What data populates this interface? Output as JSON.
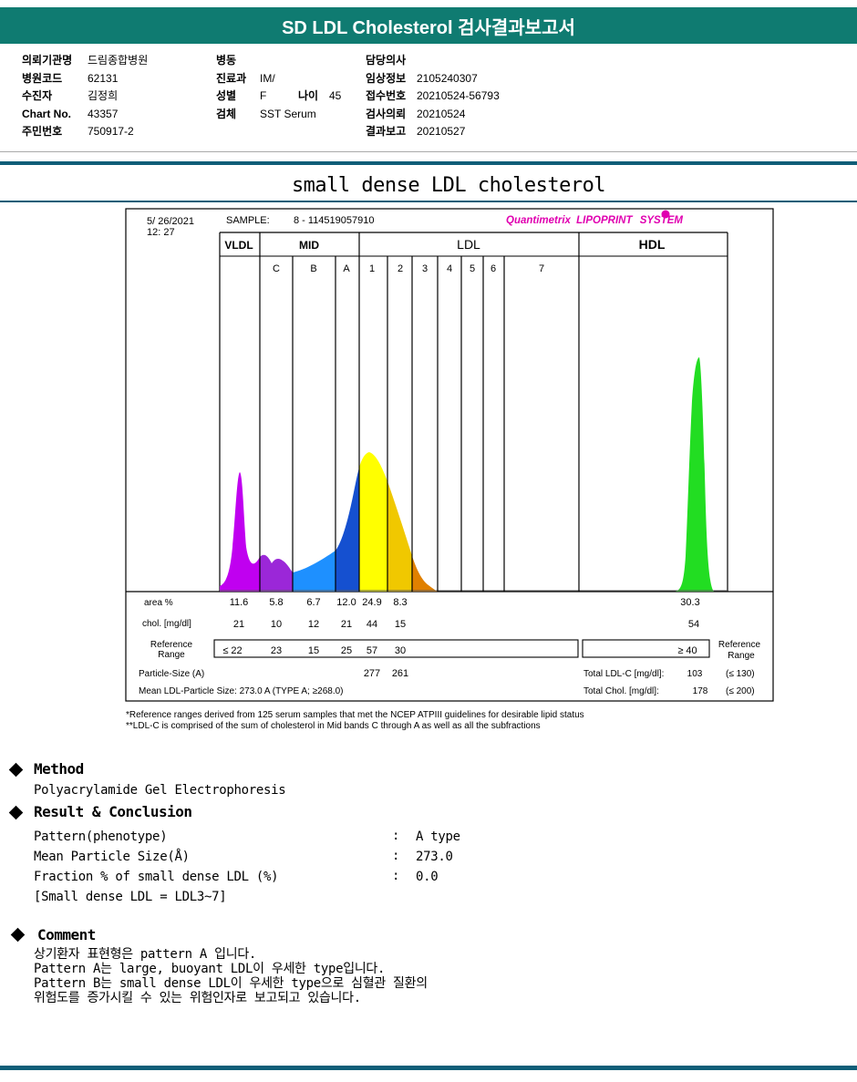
{
  "report_title": "SD LDL Cholesterol 검사결과보고서",
  "patient_info": {
    "col1": [
      {
        "label": "의뢰기관명",
        "value": "드림종합병원"
      },
      {
        "label": "병원코드",
        "value": "62131"
      },
      {
        "label": "수진자",
        "value": "김정희"
      },
      {
        "label": "Chart No.",
        "value": "43357"
      },
      {
        "label": "주민번호",
        "value": "750917-2"
      }
    ],
    "col2": [
      {
        "label": "병동",
        "value": ""
      },
      {
        "label": "진료과",
        "value": "IM/"
      },
      {
        "label": "성별",
        "value": "F"
      },
      {
        "label": "검체",
        "value": "SST Serum"
      }
    ],
    "age_label": "나이",
    "age_value": "45",
    "col3": [
      {
        "label": "담당의사",
        "value": ""
      },
      {
        "label": "임상정보",
        "value": "2105240307"
      },
      {
        "label": "접수번호",
        "value": "20210524-56793"
      },
      {
        "label": "검사의뢰",
        "value": "20210524"
      },
      {
        "label": "결과보고",
        "value": "20210527"
      }
    ]
  },
  "chart_heading": "small dense LDL cholesterol",
  "lipoprint": {
    "date": "5/ 26/2021",
    "time": "12: 27",
    "sample_label": "SAMPLE:",
    "sample_id": "8 - 114519057910",
    "brand_a": "Quantimetrix",
    "brand_b": "LIPOPRINT",
    "brand_c": "SYSTEM",
    "groups": {
      "vldl": "VLDL",
      "mid": "MID",
      "ldl": "LDL",
      "hdl": "HDL"
    },
    "band_labels": [
      "C",
      "B",
      "A",
      "1",
      "2",
      "3",
      "4",
      "5",
      "6",
      "7"
    ],
    "row_area_label": "area %",
    "row_chol_label": "chol. [mg/dl]",
    "row_ref_label1": "Reference",
    "row_ref_label2": "Range",
    "area_values": [
      "11.6",
      "5.8",
      "6.7",
      "12.0",
      "24.9",
      "8.3"
    ],
    "hdl_area": "30.3",
    "chol_values": [
      "21",
      "10",
      "12",
      "21",
      "44",
      "15"
    ],
    "hdl_chol": "54",
    "ref_values": [
      "≤ 22",
      "23",
      "15",
      "25",
      "57",
      "30"
    ],
    "hdl_ref": "≥ 40",
    "particle_size_label": "Particle-Size (A)",
    "particle_sizes": [
      "277",
      "261"
    ],
    "mean_size_text": "Mean LDL-Particle Size:   273.0 A   (TYPE A; ≥268.0)",
    "total_ldl_label": "Total LDL-C  [mg/dl]:",
    "total_ldl_value": "103",
    "total_ldl_ref": "(≤ 130)",
    "total_chol_label": "Total Chol.  [mg/dl]:",
    "total_chol_value": "178",
    "total_chol_ref": "(≤ 200)",
    "ref_right1": "Reference",
    "ref_right2": "Range",
    "colors": {
      "vldl": "#c000f0",
      "mid_c": "#9b27d8",
      "mid_b": "#1e90ff",
      "mid_a": "#1550d0",
      "ldl1": "#ffff00",
      "ldl2": "#f0c800",
      "ldl3": "#e08000",
      "hdl": "#22dd22",
      "brand": "#e000b0"
    }
  },
  "footnotes": [
    "*Reference ranges derived from 125 serum samples that met the NCEP ATPIII guidelines for desirable lipid status",
    "**LDL-C is comprised of the sum of cholesterol in Mid bands C through A as well as all the subfractions"
  ],
  "method": {
    "heading": "Method",
    "text": "Polyacrylamide Gel Electrophoresis"
  },
  "result": {
    "heading": "Result & Conclusion",
    "rows": [
      {
        "label": "Pattern(phenotype)",
        "value": "A type"
      },
      {
        "label": "Mean Particle Size(Å)",
        "value": "273.0"
      },
      {
        "label": "Fraction % of small dense LDL (%)",
        "value": "0.0"
      }
    ],
    "note": "[Small dense LDL = LDL3~7]"
  },
  "comment": {
    "heading": "Comment",
    "lines": [
      "상기환자 표현형은 pattern A 입니다.",
      "Pattern A는 large, buoyant LDL이 우세한 type입니다.",
      "Pattern B는 small dense LDL이 우세한 type으로 심혈관 질환의",
      "위험도를 증가시킬 수 있는 위험인자로 보고되고 있습니다."
    ]
  }
}
